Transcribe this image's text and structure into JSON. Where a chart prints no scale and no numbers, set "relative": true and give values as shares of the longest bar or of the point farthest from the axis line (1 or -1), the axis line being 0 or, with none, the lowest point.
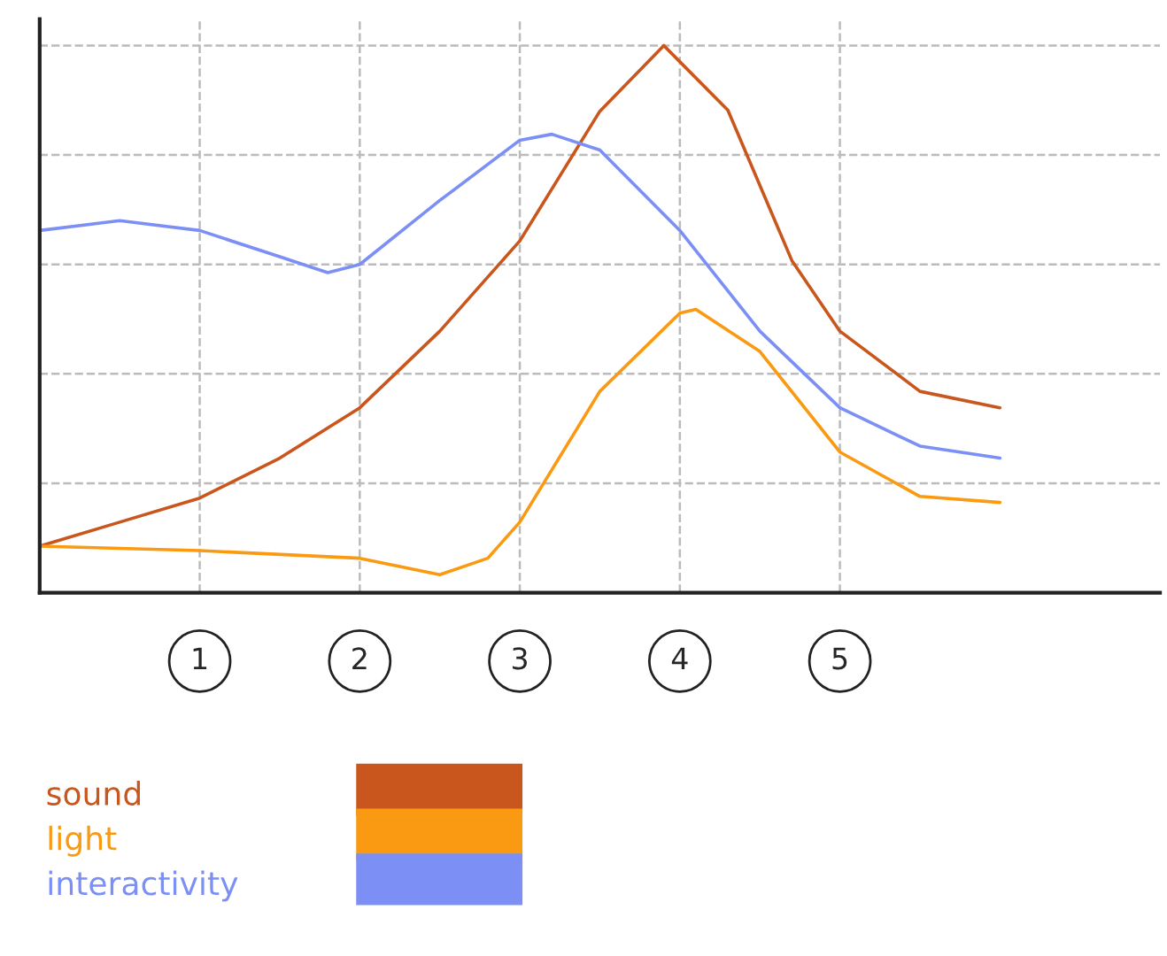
{
  "chart_data": {
    "type": "line",
    "relative": true,
    "xlim": [
      0,
      7
    ],
    "xticks": [
      1,
      2,
      3,
      4,
      5
    ],
    "grid": true,
    "legend": "bottom left",
    "line_style": "solid",
    "marker": "none",
    "series": [
      {
        "name": "sound",
        "color": "#c9561c",
        "x": [
          0,
          0.5,
          1,
          1.5,
          2,
          2.5,
          3,
          3.5,
          3.9,
          4.3,
          4.7,
          5,
          5.5,
          6
        ],
        "values": [
          0.085,
          0.129,
          0.173,
          0.246,
          0.338,
          0.478,
          0.643,
          0.88,
          1.0,
          0.882,
          0.607,
          0.478,
          0.368,
          0.338
        ]
      },
      {
        "name": "light",
        "color": "#f99a12",
        "x": [
          0,
          1,
          2,
          2.5,
          2.8,
          3,
          3.5,
          4,
          4.1,
          4.5,
          5,
          5.5,
          6
        ],
        "values": [
          0.085,
          0.077,
          0.063,
          0.033,
          0.063,
          0.129,
          0.368,
          0.511,
          0.518,
          0.441,
          0.257,
          0.176,
          0.165
        ]
      },
      {
        "name": "interactivity",
        "color": "#7b8ff5",
        "x": [
          0,
          0.5,
          1,
          1.5,
          1.8,
          2,
          2.5,
          3,
          3.2,
          3.5,
          4,
          4.5,
          5,
          5.5,
          6
        ],
        "values": [
          0.662,
          0.68,
          0.662,
          0.614,
          0.585,
          0.6,
          0.717,
          0.827,
          0.838,
          0.809,
          0.662,
          0.478,
          0.338,
          0.268,
          0.246
        ]
      }
    ]
  }
}
